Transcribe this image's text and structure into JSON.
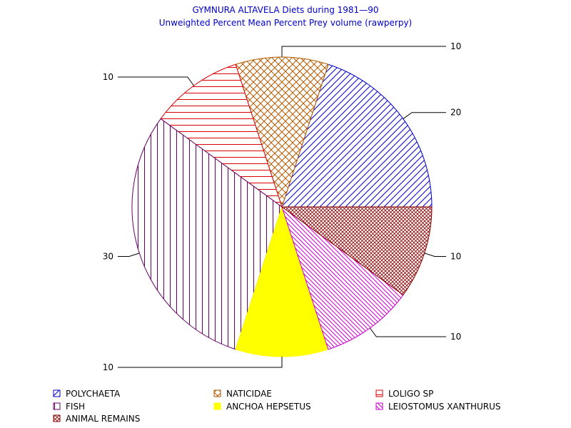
{
  "chart_data": {
    "type": "pie",
    "title": "GYMNURA ALTAVELA Diets during 1981—90",
    "subtitle": "Unweighted Percent Mean Percent Prey  volume (rawperpy)",
    "slices": [
      {
        "name": "POLYCHAETA",
        "value": 20,
        "label": "20",
        "color": "#0000cc",
        "pattern": "diag-up"
      },
      {
        "name": "NATICIDAE",
        "value": 10,
        "label": "10",
        "color": "#b05a00",
        "pattern": "crosshatch"
      },
      {
        "name": "LOLIGO SP",
        "value": 10,
        "label": "10",
        "color": "#dd0000",
        "pattern": "horizontal"
      },
      {
        "name": "FISH",
        "value": 30,
        "label": "30",
        "color": "#660066",
        "pattern": "vertical"
      },
      {
        "name": "ANCHOA HEPSETUS",
        "value": 10,
        "label": "10",
        "color": "#ffff00",
        "pattern": "solid"
      },
      {
        "name": "LEIOSTOMUS XANTHURUS",
        "value": 10,
        "label": "10",
        "color": "#cc00cc",
        "pattern": "diag-down"
      },
      {
        "name": "ANIMAL REMAINS",
        "value": 10,
        "label": "10",
        "color": "#880000",
        "pattern": "dense-cross"
      }
    ],
    "legend_position": "bottom"
  }
}
